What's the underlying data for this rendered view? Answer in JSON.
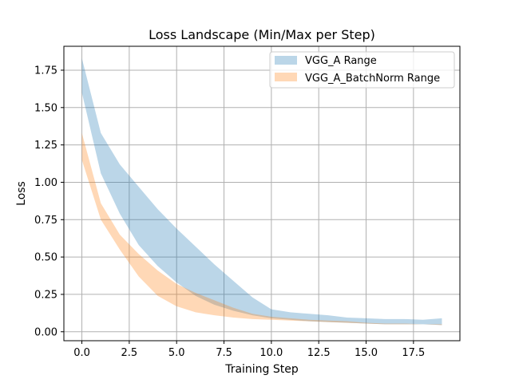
{
  "chart_data": {
    "type": "area",
    "title": "Loss Landscape (Min/Max per Step)",
    "xlabel": "Training Step",
    "ylabel": "Loss",
    "xlim": [
      -0.95,
      19.95
    ],
    "ylim": [
      -0.06,
      1.91
    ],
    "xticks": [
      0.0,
      2.5,
      5.0,
      7.5,
      10.0,
      12.5,
      15.0,
      17.5
    ],
    "xtick_labels": [
      "0.0",
      "2.5",
      "5.0",
      "7.5",
      "10.0",
      "12.5",
      "15.0",
      "17.5"
    ],
    "yticks": [
      0.0,
      0.25,
      0.5,
      0.75,
      1.0,
      1.25,
      1.5,
      1.75
    ],
    "ytick_labels": [
      "0.00",
      "0.25",
      "0.50",
      "0.75",
      "1.00",
      "1.25",
      "1.50",
      "1.75"
    ],
    "grid": true,
    "legend_position": "top-right",
    "x": [
      0,
      1,
      2,
      3,
      4,
      5,
      6,
      7,
      8,
      9,
      10,
      11,
      12,
      13,
      14,
      15,
      16,
      17,
      18,
      19
    ],
    "series": [
      {
        "name": "VGG_A Range",
        "color": "#1f77b4",
        "opacity": 0.3,
        "min": [
          1.6,
          1.06,
          0.79,
          0.58,
          0.44,
          0.33,
          0.24,
          0.18,
          0.14,
          0.11,
          0.09,
          0.08,
          0.07,
          0.065,
          0.06,
          0.055,
          0.05,
          0.05,
          0.05,
          0.045
        ],
        "max": [
          1.83,
          1.33,
          1.12,
          0.97,
          0.82,
          0.69,
          0.57,
          0.45,
          0.34,
          0.23,
          0.15,
          0.13,
          0.12,
          0.11,
          0.095,
          0.09,
          0.085,
          0.085,
          0.08,
          0.09
        ]
      },
      {
        "name": "VGG_A_BatchNorm Range",
        "color": "#ff7f0e",
        "opacity": 0.3,
        "min": [
          1.15,
          0.75,
          0.55,
          0.37,
          0.24,
          0.17,
          0.13,
          0.11,
          0.095,
          0.085,
          0.08,
          0.075,
          0.07,
          0.065,
          0.06,
          0.055,
          0.05,
          0.05,
          0.05,
          0.045
        ],
        "max": [
          1.33,
          0.86,
          0.65,
          0.52,
          0.41,
          0.32,
          0.26,
          0.21,
          0.16,
          0.12,
          0.1,
          0.09,
          0.08,
          0.075,
          0.07,
          0.06,
          0.055,
          0.055,
          0.05,
          0.05
        ]
      }
    ]
  }
}
